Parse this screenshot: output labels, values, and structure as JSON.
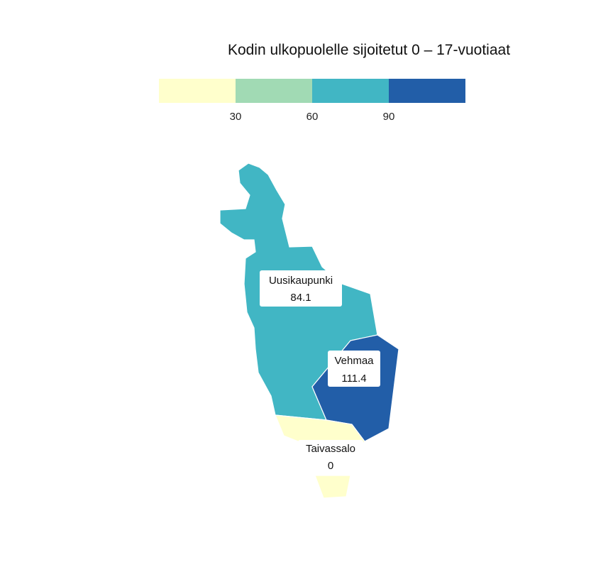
{
  "title": "Kodin ulkopuolelle sijoitetut 0 – 17-vuotiaat",
  "legend": {
    "colors": [
      "#ffffcc",
      "#a1dab4",
      "#41b6c4",
      "#225ea8"
    ],
    "ticks": [
      "30",
      "60",
      "90"
    ]
  },
  "regions": [
    {
      "name": "Uusikaupunki",
      "value": "84.1",
      "color": "#41b6c4"
    },
    {
      "name": "Vehmaa",
      "value": "111.4",
      "color": "#225ea8"
    },
    {
      "name": "Taivassalo",
      "value": "0",
      "color": "#ffffcc"
    }
  ]
}
